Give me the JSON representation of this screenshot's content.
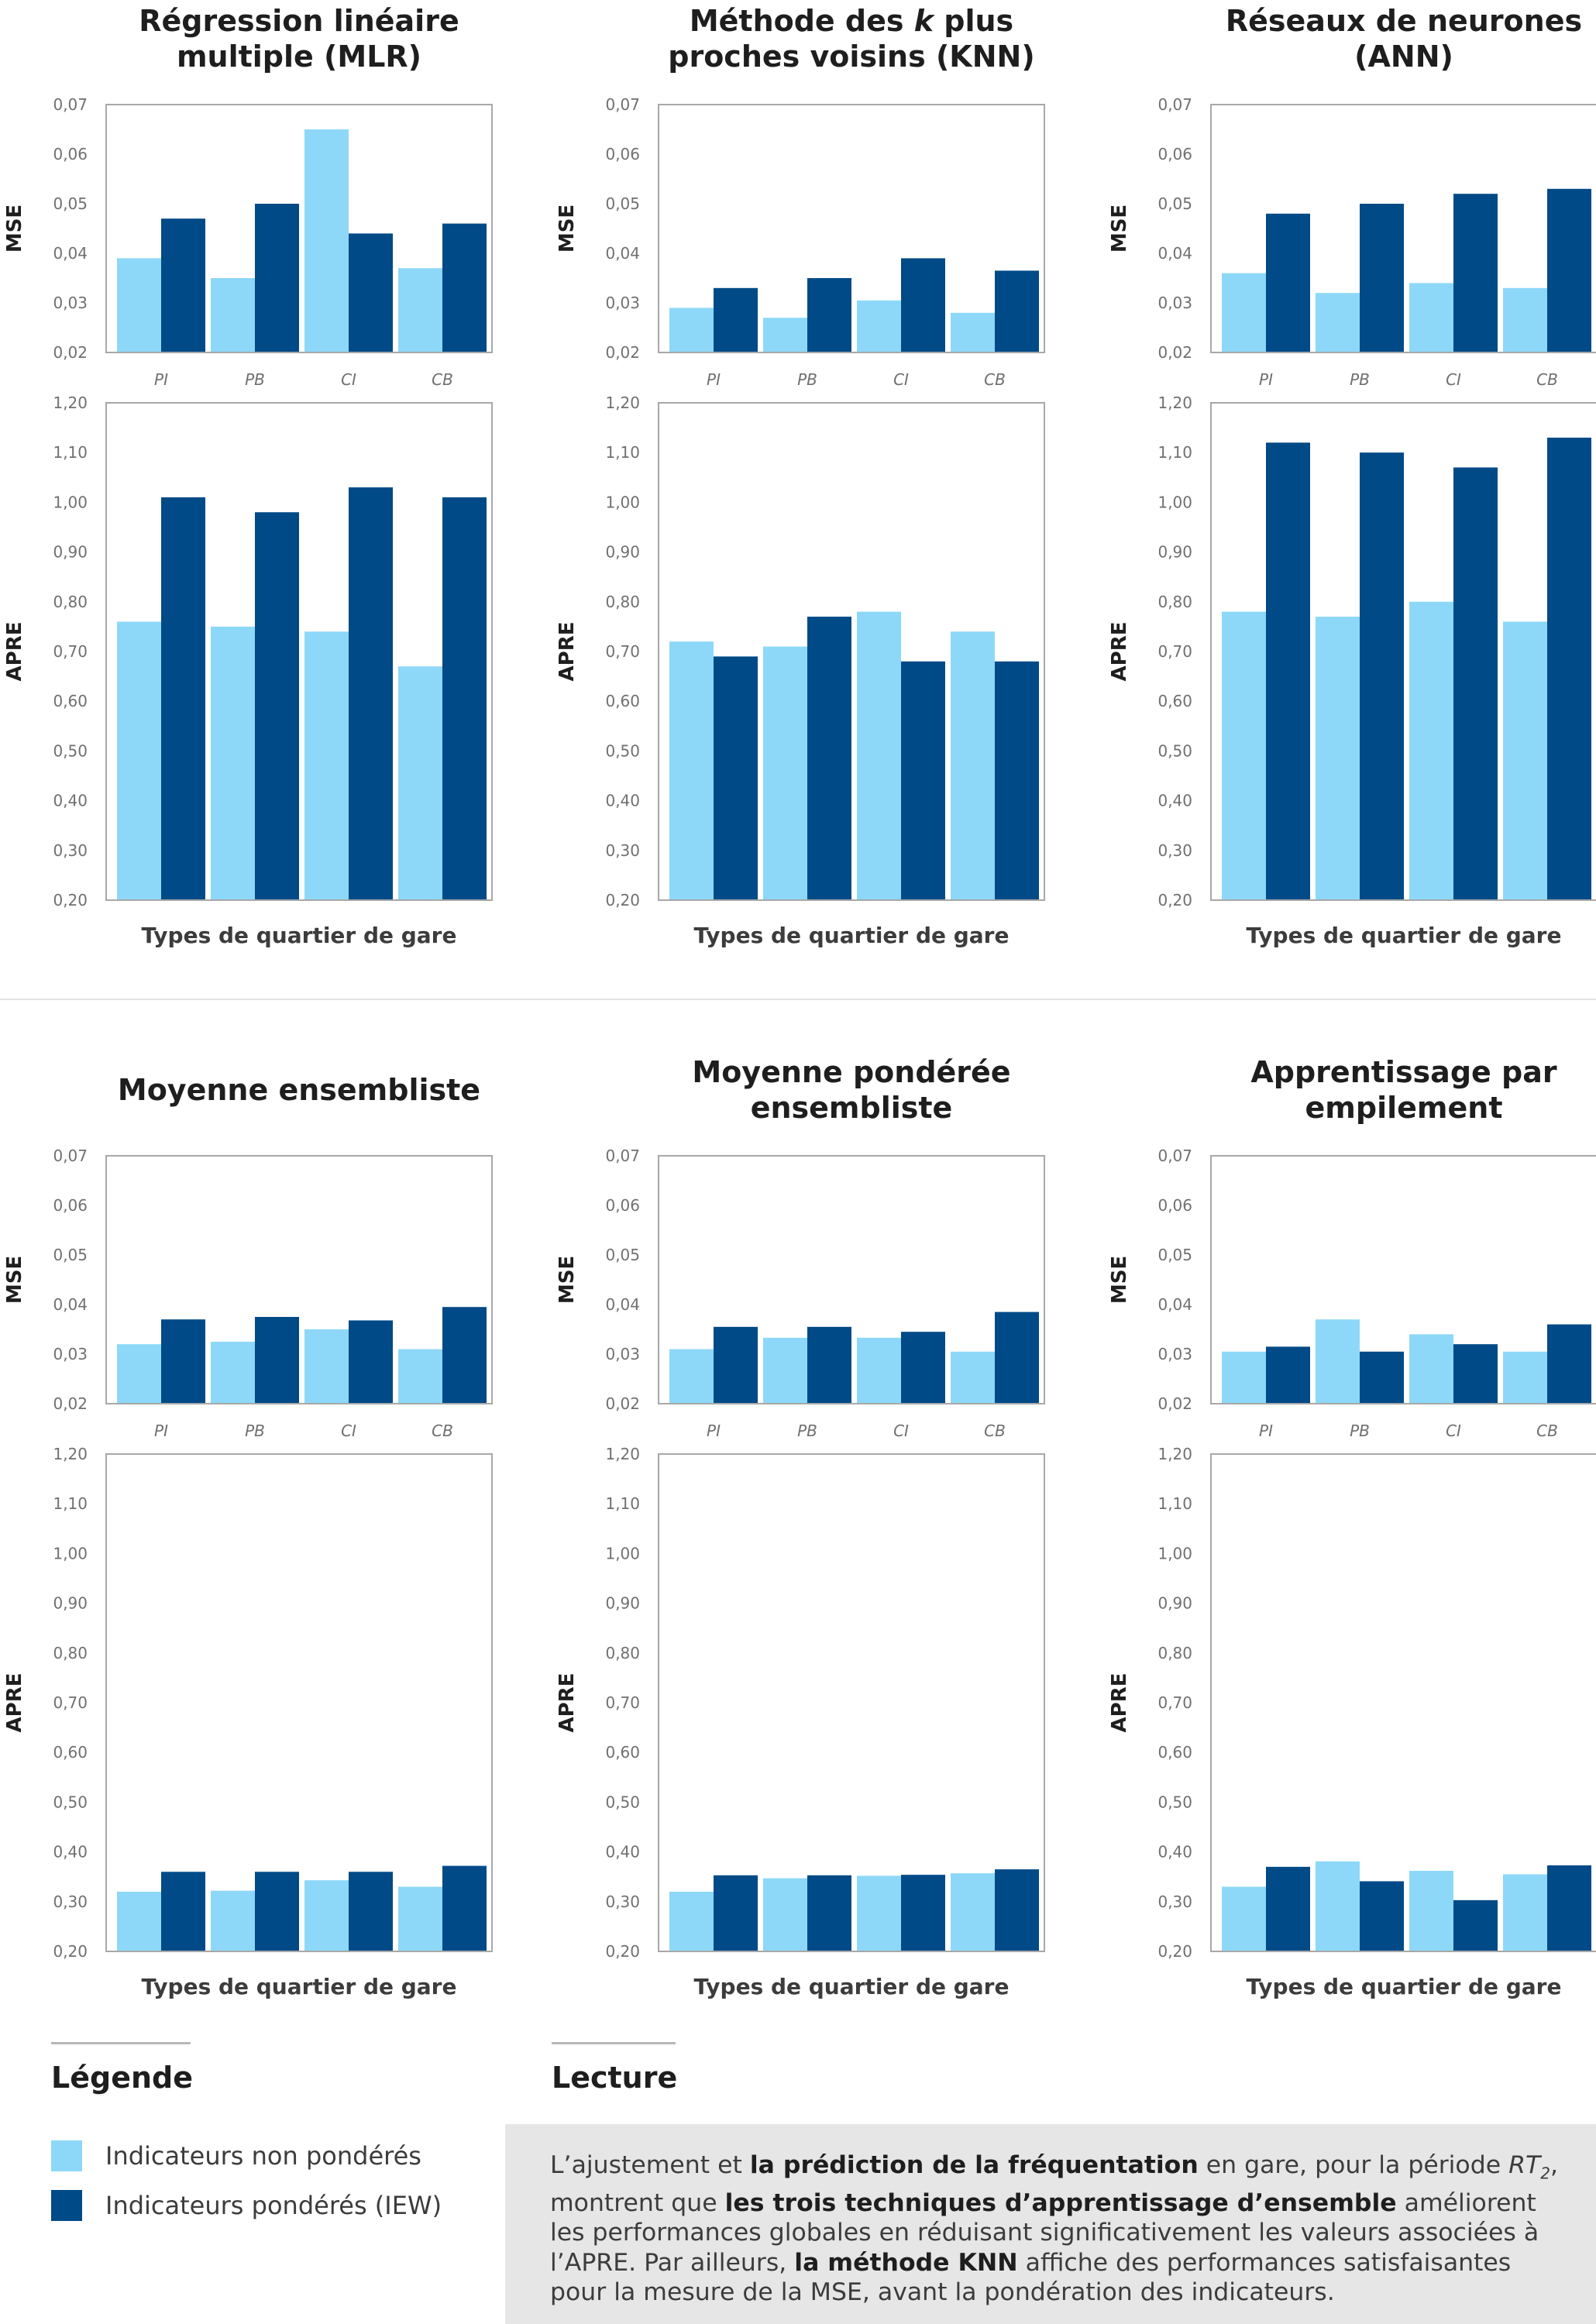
{
  "colors": {
    "unweighted": "#8dd8f8",
    "weighted": "#004a87",
    "frame": "#a8a8a8"
  },
  "categories": [
    "PI",
    "PB",
    "CI",
    "CB"
  ],
  "xlabel": "Types de quartier de gare",
  "chart_data": [
    {
      "type": "bar",
      "title_lines": [
        "Régression linéaire",
        "multiple (MLR)"
      ],
      "categories": [
        "PI",
        "PB",
        "CI",
        "CB"
      ],
      "mse": {
        "ylabel": "MSE",
        "ylim": [
          0.02,
          0.07
        ],
        "yticks": [
          "0,02",
          "0,03",
          "0,04",
          "0,05",
          "0,06",
          "0,07"
        ],
        "series": [
          {
            "name": "Indicateurs non pondérés",
            "values": [
              0.039,
              0.035,
              0.065,
              0.037
            ]
          },
          {
            "name": "Indicateurs pondérés (IEW)",
            "values": [
              0.047,
              0.05,
              0.044,
              0.046
            ]
          }
        ]
      },
      "apre": {
        "ylabel": "APRE",
        "xlabel": "Types de quartier de gare",
        "ylim": [
          0.2,
          1.2
        ],
        "yticks": [
          "0,20",
          "0,30",
          "0,40",
          "0,50",
          "0,60",
          "0,70",
          "0,80",
          "0,90",
          "1,00",
          "1,10",
          "1,20"
        ],
        "series": [
          {
            "name": "Indicateurs non pondérés",
            "values": [
              0.76,
              0.75,
              0.74,
              0.67
            ]
          },
          {
            "name": "Indicateurs pondérés (IEW)",
            "values": [
              1.01,
              0.98,
              1.03,
              1.01
            ]
          }
        ]
      }
    },
    {
      "type": "bar",
      "title_lines": [
        "Méthode des ",
        "k",
        " plus",
        "proches voisins (KNN)"
      ],
      "categories": [
        "PI",
        "PB",
        "CI",
        "CB"
      ],
      "mse": {
        "ylabel": "MSE",
        "ylim": [
          0.02,
          0.07
        ],
        "yticks": [
          "0,02",
          "0,03",
          "0,04",
          "0,05",
          "0,06",
          "0,07"
        ],
        "series": [
          {
            "name": "Indicateurs non pondérés",
            "values": [
              0.029,
              0.027,
              0.0305,
              0.028
            ]
          },
          {
            "name": "Indicateurs pondérés (IEW)",
            "values": [
              0.033,
              0.035,
              0.039,
              0.0365
            ]
          }
        ]
      },
      "apre": {
        "ylabel": "APRE",
        "xlabel": "Types de quartier de gare",
        "ylim": [
          0.2,
          1.2
        ],
        "yticks": [
          "0,20",
          "0,30",
          "0,40",
          "0,50",
          "0,60",
          "0,70",
          "0,80",
          "0,90",
          "1,00",
          "1,10",
          "1,20"
        ],
        "series": [
          {
            "name": "Indicateurs non pondérés",
            "values": [
              0.72,
              0.71,
              0.78,
              0.74
            ]
          },
          {
            "name": "Indicateurs pondérés (IEW)",
            "values": [
              0.69,
              0.77,
              0.68,
              0.68
            ]
          }
        ]
      }
    },
    {
      "type": "bar",
      "title_lines": [
        "Réseaux de neurones",
        "(ANN)"
      ],
      "categories": [
        "PI",
        "PB",
        "CI",
        "CB"
      ],
      "mse": {
        "ylabel": "MSE",
        "ylim": [
          0.02,
          0.07
        ],
        "yticks": [
          "0,02",
          "0,03",
          "0,04",
          "0,05",
          "0,06",
          "0,07"
        ],
        "series": [
          {
            "name": "Indicateurs non pondérés",
            "values": [
              0.036,
              0.032,
              0.034,
              0.033
            ]
          },
          {
            "name": "Indicateurs pondérés (IEW)",
            "values": [
              0.048,
              0.05,
              0.052,
              0.053
            ]
          }
        ]
      },
      "apre": {
        "ylabel": "APRE",
        "xlabel": "Types de quartier de gare",
        "ylim": [
          0.2,
          1.2
        ],
        "yticks": [
          "0,20",
          "0,30",
          "0,40",
          "0,50",
          "0,60",
          "0,70",
          "0,80",
          "0,90",
          "1,00",
          "1,10",
          "1,20"
        ],
        "series": [
          {
            "name": "Indicateurs non pondérés",
            "values": [
              0.78,
              0.77,
              0.8,
              0.76
            ]
          },
          {
            "name": "Indicateurs pondérés (IEW)",
            "values": [
              1.12,
              1.1,
              1.07,
              1.13
            ]
          }
        ]
      }
    },
    {
      "type": "bar",
      "title_lines": [
        "Moyenne ensembliste"
      ],
      "categories": [
        "PI",
        "PB",
        "CI",
        "CB"
      ],
      "mse": {
        "ylabel": "MSE",
        "ylim": [
          0.02,
          0.07
        ],
        "yticks": [
          "0,02",
          "0,03",
          "0,04",
          "0,05",
          "0,06",
          "0,07"
        ],
        "series": [
          {
            "name": "Indicateurs non pondérés",
            "values": [
              0.032,
              0.0325,
              0.035,
              0.031
            ]
          },
          {
            "name": "Indicateurs pondérés (IEW)",
            "values": [
              0.037,
              0.0375,
              0.0368,
              0.0395
            ]
          }
        ]
      },
      "apre": {
        "ylabel": "APRE",
        "xlabel": "Types de quartier de gare",
        "ylim": [
          0.2,
          1.2
        ],
        "yticks": [
          "0,20",
          "0,30",
          "0,40",
          "0,50",
          "0,60",
          "0,70",
          "0,80",
          "0,90",
          "1,00",
          "1,10",
          "1,20"
        ],
        "series": [
          {
            "name": "Indicateurs non pondérés",
            "values": [
              0.32,
              0.322,
              0.343,
              0.33
            ]
          },
          {
            "name": "Indicateurs pondérés (IEW)",
            "values": [
              0.36,
              0.36,
              0.36,
              0.372
            ]
          }
        ]
      }
    },
    {
      "type": "bar",
      "title_lines": [
        "Moyenne pondérée",
        "ensembliste"
      ],
      "categories": [
        "PI",
        "PB",
        "CI",
        "CB"
      ],
      "mse": {
        "ylabel": "MSE",
        "ylim": [
          0.02,
          0.07
        ],
        "yticks": [
          "0,02",
          "0,03",
          "0,04",
          "0,05",
          "0,06",
          "0,07"
        ],
        "series": [
          {
            "name": "Indicateurs non pondérés",
            "values": [
              0.031,
              0.0333,
              0.0333,
              0.0305
            ]
          },
          {
            "name": "Indicateurs pondérés (IEW)",
            "values": [
              0.0355,
              0.0355,
              0.0345,
              0.0385
            ]
          }
        ]
      },
      "apre": {
        "ylabel": "APRE",
        "xlabel": "Types de quartier de gare",
        "ylim": [
          0.2,
          1.2
        ],
        "yticks": [
          "0,20",
          "0,30",
          "0,40",
          "0,50",
          "0,60",
          "0,70",
          "0,80",
          "0,90",
          "1,00",
          "1,10",
          "1,20"
        ],
        "series": [
          {
            "name": "Indicateurs non pondérés",
            "values": [
              0.32,
              0.347,
              0.352,
              0.357
            ]
          },
          {
            "name": "Indicateurs pondérés (IEW)",
            "values": [
              0.353,
              0.353,
              0.354,
              0.365
            ]
          }
        ]
      }
    },
    {
      "type": "bar",
      "title_lines": [
        "Apprentissage par",
        "empilement"
      ],
      "categories": [
        "PI",
        "PB",
        "CI",
        "CB"
      ],
      "mse": {
        "ylabel": "MSE",
        "ylim": [
          0.02,
          0.07
        ],
        "yticks": [
          "0,02",
          "0,03",
          "0,04",
          "0,05",
          "0,06",
          "0,07"
        ],
        "series": [
          {
            "name": "Indicateurs non pondérés",
            "values": [
              0.0305,
              0.037,
              0.034,
              0.0305
            ]
          },
          {
            "name": "Indicateurs pondérés (IEW)",
            "values": [
              0.0315,
              0.0305,
              0.032,
              0.036
            ]
          }
        ]
      },
      "apre": {
        "ylabel": "APRE",
        "xlabel": "Types de quartier de gare",
        "ylim": [
          0.2,
          1.2
        ],
        "yticks": [
          "0,20",
          "0,30",
          "0,40",
          "0,50",
          "0,60",
          "0,70",
          "0,80",
          "0,90",
          "1,00",
          "1,10",
          "1,20"
        ],
        "series": [
          {
            "name": "Indicateurs non pondérés",
            "values": [
              0.33,
              0.381,
              0.362,
              0.355
            ]
          },
          {
            "name": "Indicateurs pondérés (IEW)",
            "values": [
              0.37,
              0.341,
              0.303,
              0.373
            ]
          }
        ]
      }
    }
  ],
  "legend": {
    "heading": "Légende",
    "items": [
      {
        "label": "Indicateurs non pondérés",
        "color": "#8dd8f8"
      },
      {
        "label": "Indicateurs pondérés (IEW)",
        "color": "#004a87"
      }
    ]
  },
  "lecture": {
    "heading": "Lecture",
    "parts": [
      {
        "t": "L’ajustement et ",
        "s": "n"
      },
      {
        "t": "la prédiction de la fréquentation",
        "s": "b"
      },
      {
        "t": " en gare, pour la période ",
        "s": "n"
      },
      {
        "t": "RT",
        "s": "i"
      },
      {
        "t": "2",
        "s": "sub"
      },
      {
        "t": ", montrent que ",
        "s": "n"
      },
      {
        "t": "les trois techniques d’apprentissage d’ensemble",
        "s": "b"
      },
      {
        "t": " améliorent les performances globales en réduisant significativement les valeurs associées à l’APRE. Par ailleurs, ",
        "s": "n"
      },
      {
        "t": "la méthode KNN",
        "s": "b"
      },
      {
        "t": " affiche des performances satisfaisantes pour la mesure de la MSE, avant la pondération des indicateurs.",
        "s": "n"
      }
    ]
  }
}
